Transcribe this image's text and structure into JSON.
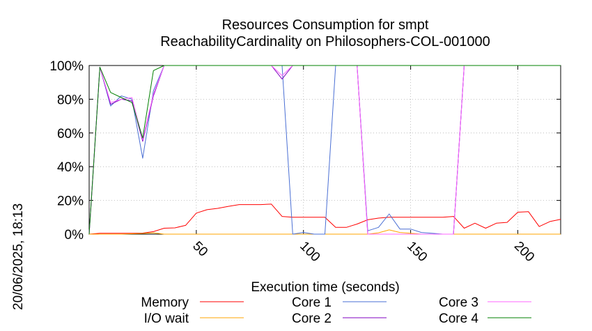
{
  "chart_data": {
    "type": "line",
    "title": "Resources Consumption for smpt",
    "subtitle": "ReachabilityCardinality on Philosophers-COL-001000",
    "xlabel": "Execution time (seconds)",
    "ylabel": "",
    "xlim": [
      0,
      220
    ],
    "ylim": [
      0,
      100
    ],
    "x_ticks": [
      50,
      100,
      150,
      200
    ],
    "x_tick_labels": [
      "50",
      "100",
      "150",
      "200"
    ],
    "y_ticks": [
      0,
      20,
      40,
      60,
      80,
      100
    ],
    "y_tick_labels": [
      "0%",
      "20%",
      "40%",
      "60%",
      "80%",
      "100%"
    ],
    "grid": true,
    "legend_position": "bottom",
    "side_label": "20/06/2025, 18:13",
    "series": [
      {
        "name": "Memory",
        "color": "#ff0000",
        "x": [
          0,
          5,
          10,
          15,
          20,
          25,
          30,
          35,
          40,
          45,
          50,
          55,
          60,
          65,
          70,
          75,
          80,
          85,
          90,
          95,
          100,
          105,
          110,
          115,
          120,
          125,
          130,
          135,
          140,
          145,
          150,
          155,
          160,
          165,
          170,
          175,
          180,
          185,
          190,
          195,
          200,
          205,
          210,
          215,
          220
        ],
        "y": [
          0,
          0.5,
          0.5,
          0.5,
          0.5,
          0.6,
          1.5,
          3.5,
          3.7,
          5.2,
          12.5,
          14.5,
          15.3,
          16.5,
          17.5,
          17.5,
          17.5,
          17.8,
          10.5,
          10,
          10,
          10,
          10,
          4,
          4,
          6,
          8.5,
          9.5,
          10,
          10,
          10,
          10,
          10,
          10,
          10.5,
          3.5,
          6.5,
          3.5,
          6.5,
          7,
          13,
          13.3,
          4.5,
          7.5,
          8.8
        ]
      },
      {
        "name": "I/O wait",
        "color": "#ffa500",
        "x": [
          0,
          5,
          10,
          15,
          20,
          25,
          30,
          35,
          40,
          45,
          130,
          135,
          140,
          145,
          150,
          155,
          160,
          165,
          170,
          175,
          220
        ],
        "y": [
          0,
          0,
          0,
          0,
          0.2,
          0.4,
          0.8,
          0,
          0,
          0,
          0,
          0.8,
          2.5,
          1,
          0.5,
          0,
          0,
          0,
          0,
          0,
          0
        ]
      },
      {
        "name": "Core 1",
        "color": "#4a6fd4",
        "x": [
          0,
          5,
          10,
          15,
          20,
          25,
          30,
          35,
          40,
          90,
          95,
          100,
          105,
          110,
          115,
          120,
          125,
          130,
          135,
          140,
          145,
          150,
          155,
          160,
          165,
          170,
          175,
          220
        ],
        "y": [
          0,
          99,
          76,
          82,
          80,
          45,
          85,
          100,
          100,
          100,
          0,
          1,
          0,
          0,
          100,
          100,
          100,
          2,
          4,
          12,
          3,
          3,
          1,
          0.5,
          0,
          0,
          100,
          100
        ]
      },
      {
        "name": "Core 2",
        "color": "#8000c0",
        "x": [
          0,
          5,
          10,
          15,
          20,
          25,
          30,
          35,
          40,
          85,
          90,
          95,
          100,
          125,
          130,
          135,
          165,
          170,
          175,
          220
        ],
        "y": [
          0,
          99,
          77,
          80,
          79,
          55,
          82,
          100,
          100,
          100,
          92,
          100,
          100,
          100,
          0,
          0,
          0,
          0,
          100,
          100
        ]
      },
      {
        "name": "Core 3",
        "color": "#ff66ff",
        "x": [
          0,
          5,
          10,
          15,
          20,
          25,
          30,
          35,
          40,
          85,
          90,
          95,
          100,
          125,
          130,
          135,
          165,
          170,
          175,
          220
        ],
        "y": [
          0,
          99,
          78,
          80,
          81,
          56,
          83,
          100,
          100,
          100,
          94,
          100,
          100,
          100,
          0,
          0,
          0,
          0,
          100,
          100
        ]
      },
      {
        "name": "Core 4",
        "color": "#008000",
        "x": [
          0,
          5,
          10,
          15,
          20,
          25,
          30,
          35,
          40,
          220
        ],
        "y": [
          0,
          99,
          84,
          81,
          78,
          57,
          97,
          100,
          100,
          100
        ]
      }
    ]
  }
}
